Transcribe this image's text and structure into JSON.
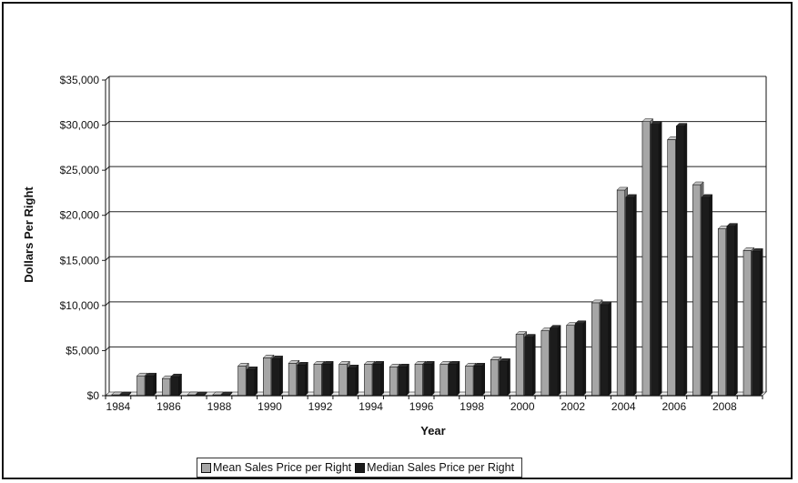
{
  "chart_data": {
    "type": "bar",
    "xlabel": "Year",
    "ylabel": "Dollars Per Right",
    "ylim": [
      0,
      35000
    ],
    "y_ticks": [
      "$0",
      "$5,000",
      "$10,000",
      "$15,000",
      "$20,000",
      "$25,000",
      "$30,000",
      "$35,000"
    ],
    "categories": [
      1984,
      1985,
      1986,
      1987,
      1988,
      1989,
      1990,
      1991,
      1992,
      1993,
      1994,
      1995,
      1996,
      1997,
      1998,
      1999,
      2000,
      2001,
      2002,
      2003,
      2004,
      2005,
      2006,
      2007,
      2008,
      2009
    ],
    "x_tick_labels": [
      "1984",
      "",
      "1986",
      "",
      "1988",
      "",
      "1990",
      "",
      "1992",
      "",
      "1994",
      "",
      "1996",
      "",
      "1998",
      "",
      "2000",
      "",
      "2002",
      "",
      "2004",
      "",
      "2006",
      "",
      "2008",
      ""
    ],
    "series": [
      {
        "name": "Mean Sales Price per Right",
        "values": [
          100,
          2200,
          1900,
          100,
          100,
          3300,
          4200,
          3600,
          3500,
          3500,
          3500,
          3200,
          3500,
          3500,
          3300,
          4000,
          6800,
          7200,
          7800,
          10300,
          22800,
          30400,
          28400,
          23400,
          18500,
          16100
        ]
      },
      {
        "name": "Median Sales Price per Right",
        "values": [
          100,
          2200,
          2100,
          100,
          100,
          2900,
          4100,
          3400,
          3500,
          3100,
          3500,
          3200,
          3500,
          3500,
          3300,
          3800,
          6500,
          7500,
          8000,
          10100,
          22000,
          30100,
          29900,
          22000,
          18800,
          16000
        ]
      }
    ],
    "colors": [
      "#a6a6a6",
      "#1c1c1c"
    ],
    "grid": true,
    "legend_position": "bottom"
  }
}
